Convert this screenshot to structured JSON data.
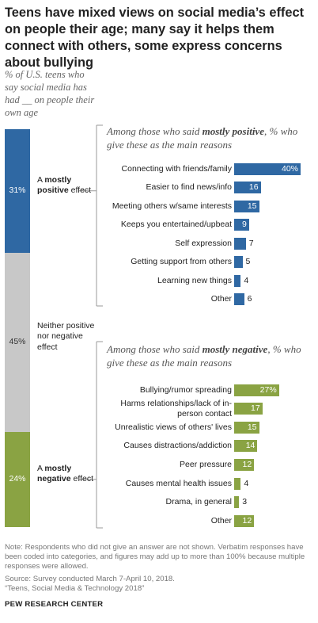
{
  "title": "Teens have mixed views on social media’s effect on people their age; many say it helps them connect with others, some express concerns about bullying",
  "subtitle": "% of U.S. teens who say social media has had __ on people their own age",
  "colors": {
    "positive": "#2f68a3",
    "neutral": "#c8c8c8",
    "negative": "#8aa343",
    "bracket": "#999999"
  },
  "chart_data": [
    {
      "type": "bar",
      "orientation": "stacked-vertical",
      "categories": [
        "A mostly positive effect",
        "Neither positive nor negative effect",
        "A mostly negative effect"
      ],
      "category_parts": [
        {
          "pre": "A ",
          "bold": "mostly positive",
          "post": " effect"
        },
        {
          "pre": "Neither positive nor negative effect",
          "bold": "",
          "post": ""
        },
        {
          "pre": "A ",
          "bold": "mostly negative",
          "post": " effect"
        }
      ],
      "values": [
        31,
        45,
        24
      ],
      "value_labels": [
        "31%",
        "45%",
        "24%"
      ]
    },
    {
      "type": "bar",
      "orientation": "horizontal",
      "heading_pre": "Among those who said ",
      "heading_bold": "mostly positive",
      "heading_post": ", % who give these as the main reasons",
      "categories": [
        "Connecting with friends/family",
        "Easier to find news/info",
        "Meeting others w/same interests",
        "Keeps you entertained/upbeat",
        "Self expression",
        "Getting support from others",
        "Learning new things",
        "Other"
      ],
      "values": [
        40,
        16,
        15,
        9,
        7,
        5,
        4,
        6
      ],
      "value_labels": [
        "40%",
        "16",
        "15",
        "9",
        "7",
        "5",
        "4",
        "6"
      ]
    },
    {
      "type": "bar",
      "orientation": "horizontal",
      "heading_pre": "Among those who said ",
      "heading_bold": "mostly negative",
      "heading_post": ", % who give these as the main reasons",
      "categories": [
        "Bullying/rumor spreading",
        "Harms relationships/lack of in-person contact",
        "Unrealistic views of others' lives",
        "Causes distractions/addiction",
        "Peer pressure",
        "Causes mental health issues",
        "Drama, in general",
        "Other"
      ],
      "values": [
        27,
        17,
        15,
        14,
        12,
        4,
        3,
        12
      ],
      "value_labels": [
        "27%",
        "17",
        "15",
        "14",
        "12",
        "4",
        "3",
        "12"
      ]
    }
  ],
  "note": "Note: Respondents who did not give an answer are not shown. Verbatim responses have been coded into categories, and figures may add up to more than 100% because multiple responses were allowed.",
  "source": "Source: Survey conducted March 7-April 10, 2018.",
  "report": "“Teens, Social Media & Technology 2018”",
  "brand": "PEW RESEARCH CENTER"
}
